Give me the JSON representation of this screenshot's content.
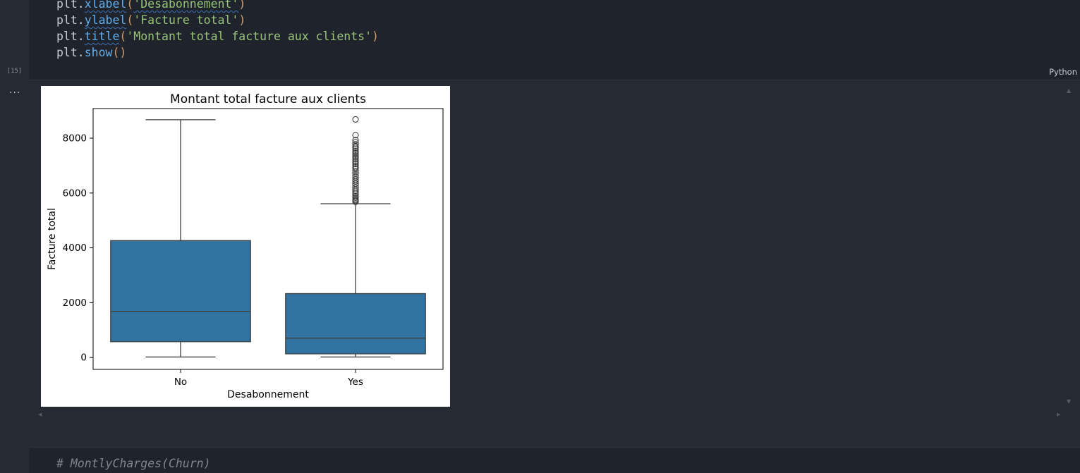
{
  "code_cell": {
    "lines": [
      {
        "obj": "plt.",
        "fn": "xlabel",
        "arg": "'Desabonnement'"
      },
      {
        "obj": "plt.",
        "fn": "ylabel",
        "arg": "'Facture total'"
      },
      {
        "obj": "plt.",
        "fn": "title",
        "arg": "'Montant total facture aux clients'"
      },
      {
        "obj": "plt.",
        "fn": "show",
        "arg": ""
      }
    ],
    "execution_count": "[15]",
    "language": "Python"
  },
  "output": {
    "menu_label": "..."
  },
  "next_cell": {
    "text": "# MontlyCharges(Churn)"
  },
  "chart_data": {
    "type": "boxplot",
    "title": "Montant total facture aux clients",
    "xlabel": "Desabonnement",
    "ylabel": "Facture total",
    "categories": [
      "No",
      "Yes"
    ],
    "yticks": [
      0,
      2000,
      4000,
      6000,
      8000
    ],
    "ylim": [
      -433,
      9080
    ],
    "box_color": "#3274a1",
    "boxes": [
      {
        "category": "No",
        "whisker_low": 18.8,
        "q1": 577,
        "median": 1683,
        "q3": 4265,
        "whisker_high": 8672,
        "outliers": []
      },
      {
        "category": "Yes",
        "whisker_low": 18.85,
        "q1": 134,
        "median": 703,
        "q3": 2331,
        "whisker_high": 5609,
        "outliers": [
          5680,
          5710,
          5740,
          5780,
          5830,
          5880,
          5940,
          6000,
          6070,
          6140,
          6210,
          6290,
          6350,
          6430,
          6500,
          6580,
          6650,
          6730,
          6810,
          6880,
          6940,
          7000,
          7060,
          7120,
          7180,
          7240,
          7300,
          7360,
          7410,
          7470,
          7530,
          7590,
          7650,
          7710,
          7780,
          7850,
          7930,
          8110,
          8684
        ]
      }
    ]
  }
}
